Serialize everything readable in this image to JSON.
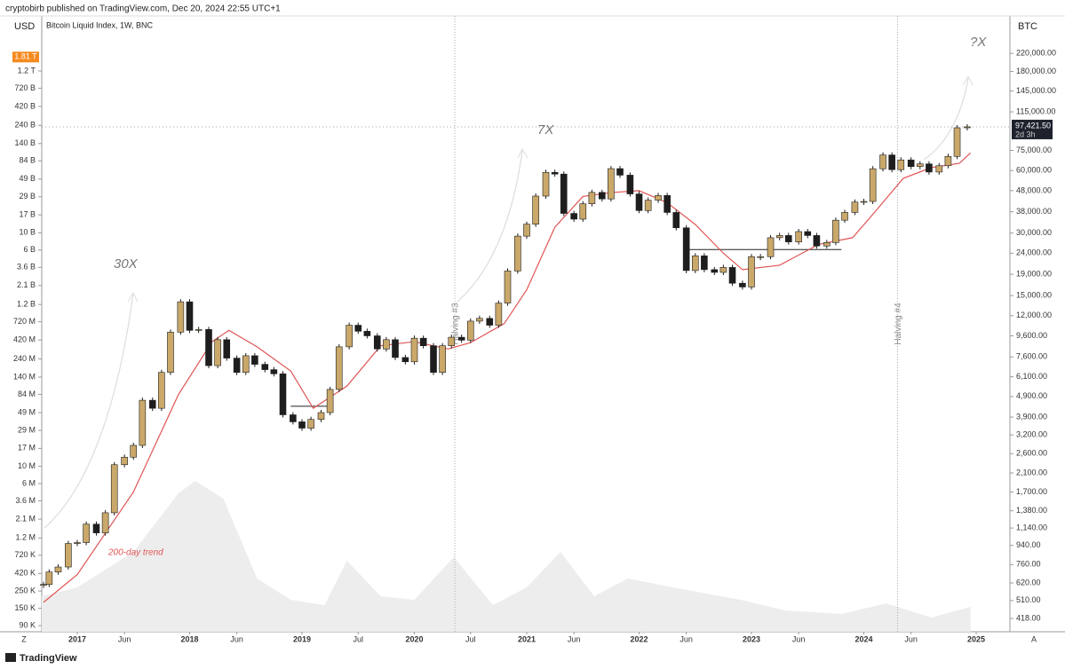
{
  "header": {
    "publisher": "cryptobirb published on TradingView.com, Dec 20, 2024 22:55 UTC+1",
    "symbol": "Bitcoin Liquid Index, 1W, BNC",
    "left_unit": "USD",
    "right_unit": "BTC",
    "footer": "TradingView",
    "left_corner": "Z",
    "right_corner": "A"
  },
  "chart_data": {
    "type": "candlestick",
    "log_scale": true,
    "xlim": [
      2016.684,
      2025.3
    ],
    "xticks": [
      2017,
      {
        "value": 2017.42,
        "label": "Jun"
      },
      2018,
      {
        "value": 2018.42,
        "label": "Jun"
      },
      2019,
      {
        "value": 2019.5,
        "label": "Jul"
      },
      2020,
      {
        "value": 2020.5,
        "label": "Jul"
      },
      2021,
      {
        "value": 2021.42,
        "label": "Jun"
      },
      2022,
      {
        "value": 2022.42,
        "label": "Jun"
      },
      2023,
      {
        "value": 2023.42,
        "label": "Jun"
      },
      2024,
      {
        "value": 2024.42,
        "label": "Jun"
      },
      2025
    ],
    "ylim": [
      75000,
      6100000000000
    ],
    "yticks": [
      {
        "value": 1200000000000,
        "label": "1.2 T"
      },
      {
        "value": 720000000000,
        "label": "720 B"
      },
      {
        "value": 420000000000,
        "label": "420 B"
      },
      {
        "value": 240000000000,
        "label": "240 B"
      },
      {
        "value": 140000000000,
        "label": "140 B"
      },
      {
        "value": 84000000000,
        "label": "84 B"
      },
      {
        "value": 49000000000,
        "label": "49 B"
      },
      {
        "value": 29000000000,
        "label": "29 B"
      },
      {
        "value": 17000000000,
        "label": "17 B"
      },
      {
        "value": 10000000000,
        "label": "10 B"
      },
      {
        "value": 6000000000,
        "label": "6 B"
      },
      {
        "value": 3600000000,
        "label": "3.6 B"
      },
      {
        "value": 2100000000,
        "label": "2.1 B"
      },
      {
        "value": 1200000000,
        "label": "1.2 B"
      },
      {
        "value": 720000000,
        "label": "720 M"
      },
      {
        "value": 420000000,
        "label": "420 M"
      },
      {
        "value": 240000000,
        "label": "240 M"
      },
      {
        "value": 140000000,
        "label": "140 M"
      },
      {
        "value": 84000000,
        "label": "84 M"
      },
      {
        "value": 49000000,
        "label": "49 M"
      },
      {
        "value": 29000000,
        "label": "29 M"
      },
      {
        "value": 17000000,
        "label": "17 M"
      },
      {
        "value": 10000000,
        "label": "10 M"
      },
      {
        "value": 6000000,
        "label": "6 M"
      },
      {
        "value": 3600000,
        "label": "3.6 M"
      },
      {
        "value": 2100000,
        "label": "2.1 M"
      },
      {
        "value": 1200000,
        "label": "1.2 M"
      },
      {
        "value": 720000,
        "label": "720 K"
      },
      {
        "value": 420000,
        "label": "420 K"
      },
      {
        "value": 250000,
        "label": "250 K"
      },
      {
        "value": 150000,
        "label": "150 K"
      },
      {
        "value": 90000,
        "label": "90 K"
      }
    ],
    "left_marker": {
      "value": 1810000000000,
      "label": "1.81 T"
    },
    "y2lim": [
      361,
      333000
    ],
    "y2ticks": [
      {
        "value": 220000,
        "label": "220,000.00"
      },
      {
        "value": 180000,
        "label": "180,000.00"
      },
      {
        "value": 145000,
        "label": "145,000.00"
      },
      {
        "value": 115000,
        "label": "115,000.00"
      },
      {
        "value": 75000,
        "label": "75,000.00"
      },
      {
        "value": 60000,
        "label": "60,000.00"
      },
      {
        "value": 48000,
        "label": "48,000.00"
      },
      {
        "value": 38000,
        "label": "38,000.00"
      },
      {
        "value": 30000,
        "label": "30,000.00"
      },
      {
        "value": 24000,
        "label": "24,000.00"
      },
      {
        "value": 19000,
        "label": "19,000.00"
      },
      {
        "value": 15000,
        "label": "15,000.00"
      },
      {
        "value": 12000,
        "label": "12,000.00"
      },
      {
        "value": 9600,
        "label": "9,600.00"
      },
      {
        "value": 7600,
        "label": "7,600.00"
      },
      {
        "value": 6100,
        "label": "6,100.00"
      },
      {
        "value": 4900,
        "label": "4,900.00"
      },
      {
        "value": 3900,
        "label": "3,900.00"
      },
      {
        "value": 3200,
        "label": "3,200.00"
      },
      {
        "value": 2600,
        "label": "2,600.00"
      },
      {
        "value": 2100,
        "label": "2,100.00"
      },
      {
        "value": 1700,
        "label": "1,700.00"
      },
      {
        "value": 1380,
        "label": "1,380.00"
      },
      {
        "value": 1140,
        "label": "1,140.00"
      },
      {
        "value": 940,
        "label": "940.00"
      },
      {
        "value": 760,
        "label": "760.00"
      },
      {
        "value": 620,
        "label": "620.00"
      },
      {
        "value": 510,
        "label": "510.00"
      },
      {
        "value": 418,
        "label": "418.00"
      }
    ],
    "series": [
      {
        "axis": "y2",
        "up_color": "#c9a86a",
        "down_color": "#1e1e1e",
        "x": [
          2016.7,
          2016.75,
          2016.83,
          2016.92,
          2017.0,
          2017.08,
          2017.17,
          2017.25,
          2017.33,
          2017.42,
          2017.5,
          2017.58,
          2017.67,
          2017.75,
          2017.83,
          2017.92,
          2018.0,
          2018.08,
          2018.17,
          2018.25,
          2018.33,
          2018.42,
          2018.5,
          2018.58,
          2018.67,
          2018.75,
          2018.83,
          2018.92,
          2019.0,
          2019.08,
          2019.17,
          2019.25,
          2019.33,
          2019.42,
          2019.5,
          2019.58,
          2019.67,
          2019.75,
          2019.83,
          2019.92,
          2020.0,
          2020.08,
          2020.17,
          2020.25,
          2020.33,
          2020.42,
          2020.5,
          2020.58,
          2020.67,
          2020.75,
          2020.83,
          2020.92,
          2021.0,
          2021.08,
          2021.17,
          2021.25,
          2021.33,
          2021.42,
          2021.5,
          2021.58,
          2021.67,
          2021.75,
          2021.83,
          2021.92,
          2022.0,
          2022.08,
          2022.17,
          2022.25,
          2022.33,
          2022.42,
          2022.5,
          2022.58,
          2022.67,
          2022.75,
          2022.83,
          2022.92,
          2023.0,
          2023.08,
          2023.17,
          2023.25,
          2023.33,
          2023.42,
          2023.5,
          2023.58,
          2023.67,
          2023.75,
          2023.83,
          2023.92,
          2024.0,
          2024.08,
          2024.17,
          2024.25,
          2024.33,
          2024.42,
          2024.5,
          2024.58,
          2024.67,
          2024.75,
          2024.83,
          2024.92
        ],
        "values": [
          610,
          700,
          740,
          960,
          970,
          1190,
          1080,
          1350,
          2300,
          2500,
          2850,
          4700,
          4300,
          6400,
          10000,
          14000,
          10200,
          10300,
          6900,
          9200,
          7500,
          6400,
          7700,
          7000,
          6600,
          6300,
          4000,
          3700,
          3450,
          3800,
          4100,
          5300,
          8500,
          10800,
          10100,
          9600,
          8300,
          9200,
          7550,
          7200,
          9350,
          8600,
          6400,
          8600,
          9450,
          9150,
          11300,
          11650,
          10800,
          13800,
          19700,
          29000,
          33100,
          45200,
          58800,
          57700,
          37300,
          35000,
          41500,
          47100,
          43800,
          61300,
          57000,
          46300,
          38500,
          43200,
          45500,
          37700,
          31800,
          19800,
          23300,
          20000,
          19400,
          20500,
          17200,
          16500,
          23100,
          23100,
          28500,
          29200,
          27200,
          30500,
          29200,
          26000,
          27000,
          34600,
          37700,
          42300,
          42600,
          61200,
          71300,
          60600,
          67500,
          62700,
          64600,
          59000,
          63300,
          70200,
          96400,
          97421.5
        ]
      }
    ],
    "price_label": {
      "value": 97421.5,
      "label": "97,421.50",
      "countdown": "2d 3h"
    },
    "trend": {
      "name": "200-day trend",
      "color": "#e05555",
      "axis": "y2",
      "x": [
        2016.7,
        2017.0,
        2017.5,
        2017.9,
        2018.2,
        2018.35,
        2018.6,
        2018.9,
        2019.1,
        2019.4,
        2019.7,
        2020.0,
        2020.3,
        2020.5,
        2020.8,
        2021.0,
        2021.25,
        2021.5,
        2021.75,
        2022.0,
        2022.25,
        2022.5,
        2022.75,
        2022.92,
        2023.25,
        2023.6,
        2023.9,
        2024.1,
        2024.35,
        2024.6,
        2024.85,
        2024.95
      ],
      "values": [
        500,
        680,
        1700,
        5000,
        9000,
        10200,
        8500,
        6500,
        4300,
        5500,
        8600,
        9000,
        8300,
        8900,
        11000,
        16000,
        32000,
        45000,
        47000,
        48000,
        42000,
        33000,
        24000,
        20000,
        21000,
        26500,
        28500,
        38000,
        55000,
        62000,
        65000,
        73000
      ]
    },
    "volume": {
      "color": "#ededed",
      "ylim": [
        0,
        100
      ],
      "x": [
        2016.684,
        2017.0,
        2017.5,
        2017.9,
        2018.05,
        2018.3,
        2018.6,
        2018.9,
        2019.2,
        2019.4,
        2019.7,
        2020.0,
        2020.35,
        2020.7,
        2021.0,
        2021.3,
        2021.6,
        2021.9,
        2022.3,
        2022.9,
        2023.3,
        2023.8,
        2024.2,
        2024.6,
        2024.95
      ],
      "values": [
        20,
        25,
        45,
        78,
        85,
        75,
        30,
        18,
        15,
        40,
        20,
        18,
        42,
        15,
        25,
        45,
        20,
        30,
        25,
        18,
        12,
        10,
        16,
        8,
        14
      ]
    },
    "halvings": [
      {
        "x": 2020.36,
        "label": "Halving #3"
      },
      {
        "x": 2024.3,
        "label": "Halving #4"
      }
    ],
    "levels": [
      {
        "x": [
          2018.9,
          2019.25
        ],
        "value": 4400
      },
      {
        "x": [
          2022.42,
          2023.8
        ],
        "value": 25000
      }
    ],
    "annotations": [
      "30X",
      "7X",
      "?X"
    ]
  }
}
